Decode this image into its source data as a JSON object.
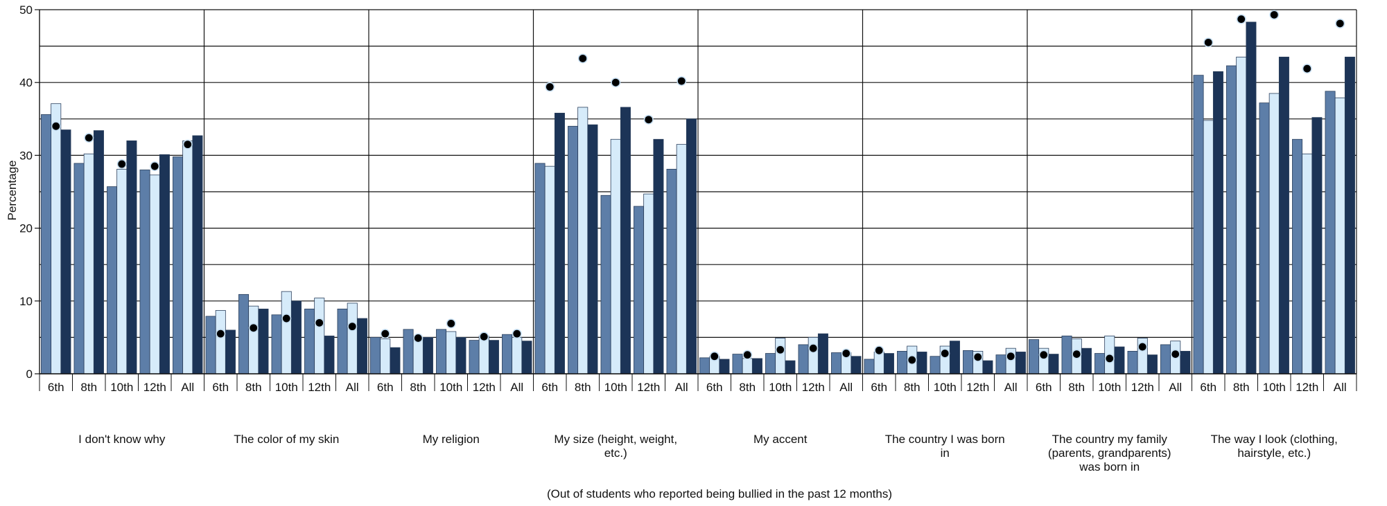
{
  "chart_data": {
    "type": "bar",
    "ylabel": "Percentage",
    "note": "(Out of students who reported being bullied in the past 12 months)",
    "ylim": [
      0,
      50
    ],
    "yticks": [
      0,
      10,
      20,
      30,
      40,
      50
    ],
    "grid": true,
    "grades": [
      "6th",
      "8th",
      "10th",
      "12th",
      "All"
    ],
    "groups": [
      {
        "label": [
          "I don't know why"
        ],
        "bars": [
          [
            35.6,
            37.1,
            33.5
          ],
          [
            28.9,
            30.2,
            33.4
          ],
          [
            25.7,
            28.1,
            32.0
          ],
          [
            28.0,
            27.3,
            30.1
          ],
          [
            29.8,
            32.0,
            32.7
          ]
        ],
        "dots": [
          34.0,
          32.4,
          28.8,
          28.5,
          31.5
        ]
      },
      {
        "label": [
          "The color of my skin"
        ],
        "bars": [
          [
            7.9,
            8.7,
            6.0
          ],
          [
            10.9,
            9.3,
            8.9
          ],
          [
            8.1,
            11.3,
            10.0
          ],
          [
            8.9,
            10.4,
            5.2
          ],
          [
            8.9,
            9.7,
            7.6
          ]
        ],
        "dots": [
          5.5,
          6.3,
          7.6,
          7.0,
          6.5
        ]
      },
      {
        "label": [
          "My religion"
        ],
        "bars": [
          [
            5.0,
            4.8,
            3.6
          ],
          [
            6.1,
            5.0,
            5.0
          ],
          [
            6.1,
            5.8,
            5.0
          ],
          [
            4.6,
            5.2,
            4.6
          ],
          [
            5.4,
            5.0,
            4.5
          ]
        ],
        "dots": [
          5.5,
          4.9,
          6.9,
          5.1,
          5.5
        ]
      },
      {
        "label": [
          "My size (height, weight,",
          "etc.)"
        ],
        "bars": [
          [
            28.9,
            28.5,
            35.8
          ],
          [
            34.0,
            36.6,
            34.2
          ],
          [
            24.5,
            32.2,
            36.6
          ],
          [
            23.0,
            24.7,
            32.2
          ],
          [
            28.1,
            31.5,
            35.0
          ]
        ],
        "dots": [
          39.4,
          43.3,
          40.0,
          34.9,
          40.2
        ]
      },
      {
        "label": [
          "My accent"
        ],
        "bars": [
          [
            2.2,
            2.4,
            2.0
          ],
          [
            2.7,
            2.1,
            2.1
          ],
          [
            2.8,
            4.9,
            1.8
          ],
          [
            4.0,
            5.0,
            5.5
          ],
          [
            2.9,
            2.9,
            2.4
          ]
        ],
        "dots": [
          2.4,
          2.6,
          3.3,
          3.5,
          2.8
        ]
      },
      {
        "label": [
          "The country I was born",
          "in"
        ],
        "bars": [
          [
            2.0,
            3.0,
            2.8
          ],
          [
            3.1,
            3.8,
            3.0
          ],
          [
            2.4,
            3.8,
            4.5
          ],
          [
            3.2,
            3.1,
            1.8
          ],
          [
            2.6,
            3.5,
            3.0
          ]
        ],
        "dots": [
          3.2,
          1.9,
          2.8,
          2.3,
          2.4
        ]
      },
      {
        "label": [
          "The country my family",
          "(parents, grandparents)",
          "was born in"
        ],
        "bars": [
          [
            4.7,
            3.5,
            2.7
          ],
          [
            5.2,
            4.8,
            3.5
          ],
          [
            2.8,
            5.2,
            3.7
          ],
          [
            3.1,
            4.9,
            2.6
          ],
          [
            4.0,
            4.5,
            3.1
          ]
        ],
        "dots": [
          2.6,
          2.7,
          2.1,
          3.7,
          2.7
        ]
      },
      {
        "label": [
          "The way I look (clothing,",
          "hairstyle, etc.)"
        ],
        "bars": [
          [
            41.0,
            34.8,
            41.5
          ],
          [
            42.3,
            43.5,
            48.3
          ],
          [
            37.2,
            38.5,
            43.5
          ],
          [
            32.2,
            30.2,
            35.2
          ],
          [
            38.8,
            37.9,
            43.5
          ]
        ],
        "dots": [
          45.5,
          48.7,
          49.3,
          41.9,
          48.1
        ]
      }
    ],
    "colors": {
      "series1": "#5d7ea8",
      "series2": "#d6ebfa",
      "series3": "#1c3457",
      "dot": "#000000",
      "dot_stroke": "#c3dcf0",
      "bar_stroke": "#2a3f5c",
      "grid": "#111111",
      "axis": "#111111"
    }
  }
}
